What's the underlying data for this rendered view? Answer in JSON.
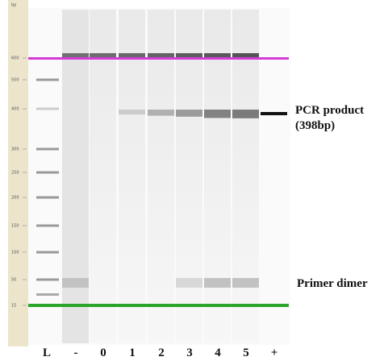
{
  "axis": {
    "unit": "bp",
    "ticks": [
      "600",
      "500",
      "400",
      "300",
      "250",
      "200",
      "150",
      "100",
      "50",
      "15"
    ]
  },
  "lanes": [
    "L",
    "-",
    "0",
    "1",
    "2",
    "3",
    "4",
    "5",
    "+"
  ],
  "annotations": {
    "pcr_product": [
      "PCR product",
      "(398bp)"
    ],
    "primer_dimer": "Primer dimer"
  }
}
